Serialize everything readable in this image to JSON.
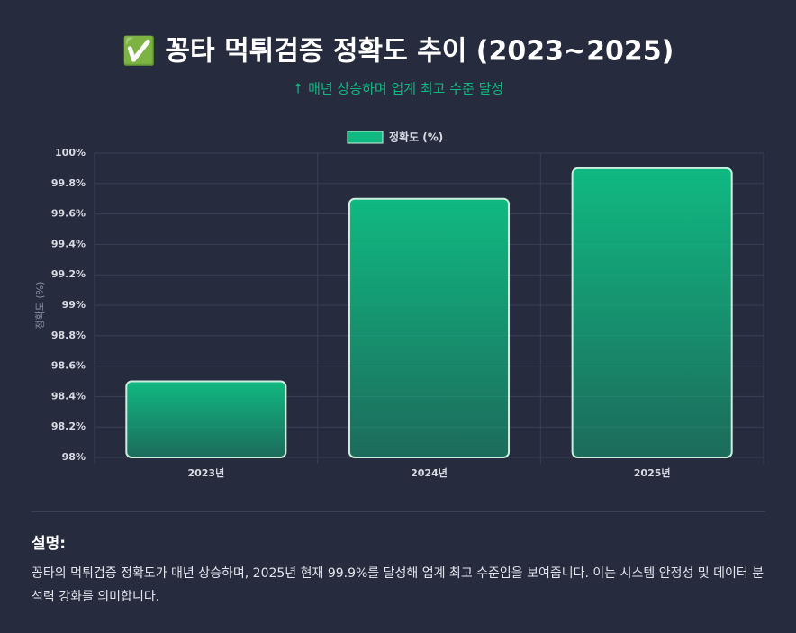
{
  "chart_data": {
    "type": "bar",
    "title": "✅ 꽁타 먹튀검증 정확도 추이 (2023~2025)",
    "subtitle": "↑ 매년 상승하며 업계 최고 수준 달성",
    "y_label": "정확도 (%)",
    "categories": [
      "2023년",
      "2024년",
      "2025년"
    ],
    "series": [
      {
        "name": "정확도 (%)",
        "color": "#10b981",
        "values": [
          98.5,
          99.7,
          99.9
        ]
      }
    ],
    "ylim": [
      98,
      100
    ],
    "yticks": [
      {
        "value": 98,
        "label": "98%"
      },
      {
        "value": 98.2,
        "label": "98.2%"
      },
      {
        "value": 98.4,
        "label": "98.4%"
      },
      {
        "value": 98.6,
        "label": "98.6%"
      },
      {
        "value": 98.8,
        "label": "98.8%"
      },
      {
        "value": 99,
        "label": "99%"
      },
      {
        "value": 99.2,
        "label": "99.2%"
      },
      {
        "value": 99.4,
        "label": "99.4%"
      },
      {
        "value": 99.6,
        "label": "99.6%"
      },
      {
        "value": 99.8,
        "label": "99.8%"
      },
      {
        "value": 100,
        "label": "100%"
      }
    ],
    "grid": true,
    "legend": "top"
  },
  "description": {
    "heading": "설명:",
    "text": "꽁타의 먹튀검증 정확도가 매년 상승하며, 2025년 현재 99.9%를 달성해 업계 최고 수준임을 보여줍니다. 이는 시스템 안정성 및 데이터 분석력 강화를 의미합니다."
  }
}
